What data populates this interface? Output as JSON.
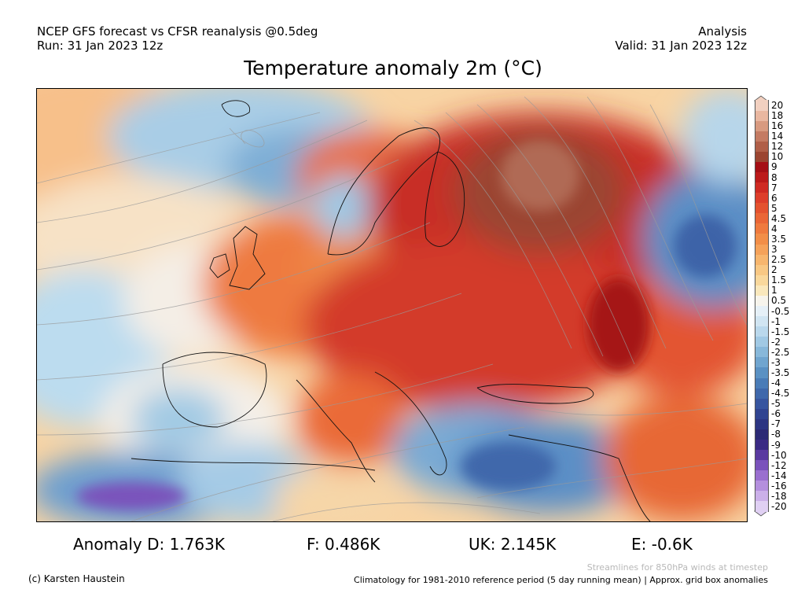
{
  "header": {
    "left_line1": "NCEP GFS forecast vs CFSR reanalysis @0.5deg",
    "left_line2": "Run: 31 Jan 2023 12z",
    "right_line1": "Analysis",
    "right_line2": "Valid: 31 Jan 2023 12z"
  },
  "title": "Temperature anomaly 2m (°C)",
  "colorbar": {
    "labels": [
      "20",
      "18",
      "16",
      "14",
      "12",
      "10",
      "9",
      "8",
      "7",
      "6",
      "5",
      "4.5",
      "4",
      "3.5",
      "3",
      "2.5",
      "2",
      "1.5",
      "1",
      "0.5",
      "-0.5",
      "-1",
      "-1.5",
      "-2",
      "-2.5",
      "-3",
      "-3.5",
      "-4",
      "-4.5",
      "-5",
      "-6",
      "-7",
      "-8",
      "-9",
      "-10",
      "-12",
      "-14",
      "-16",
      "-18",
      "-20"
    ],
    "colors": [
      "#f2d0c0",
      "#e9b7a0",
      "#d89a80",
      "#c47b63",
      "#b05f48",
      "#9b4531",
      "#a50f15",
      "#bb1a1a",
      "#cf2a23",
      "#dd3e2b",
      "#e4522f",
      "#ea6636",
      "#ef7a3e",
      "#f28e48",
      "#f5a25a",
      "#f7b66e",
      "#f8c884",
      "#f9d89c",
      "#fae8bc",
      "#f7f4ec",
      "#e6f0f7",
      "#d1e5f2",
      "#bad8ec",
      "#a1c9e4",
      "#88b8da",
      "#70a5cf",
      "#5a91c3",
      "#4a7cb7",
      "#3f68ab",
      "#37559f",
      "#304491",
      "#2c3582",
      "#2c2a75",
      "#3a2a84",
      "#5a3aa0",
      "#7a52bb",
      "#9a6fcf",
      "#b48fdd",
      "#cbb0e9",
      "#e0d0f3"
    ]
  },
  "stats": {
    "d": "Anomaly D: 1.763K",
    "f": "F: 0.486K",
    "uk": "UK: 2.145K",
    "e": "E: -0.6K"
  },
  "footer": {
    "copyright": "(c) Karsten Haustein",
    "streamlines": "Streamlines for 850hPa winds at timestep",
    "climatology": "Climatology for 1981-2010 reference period (5 day running mean) | Approx. grid box anomalies"
  }
}
